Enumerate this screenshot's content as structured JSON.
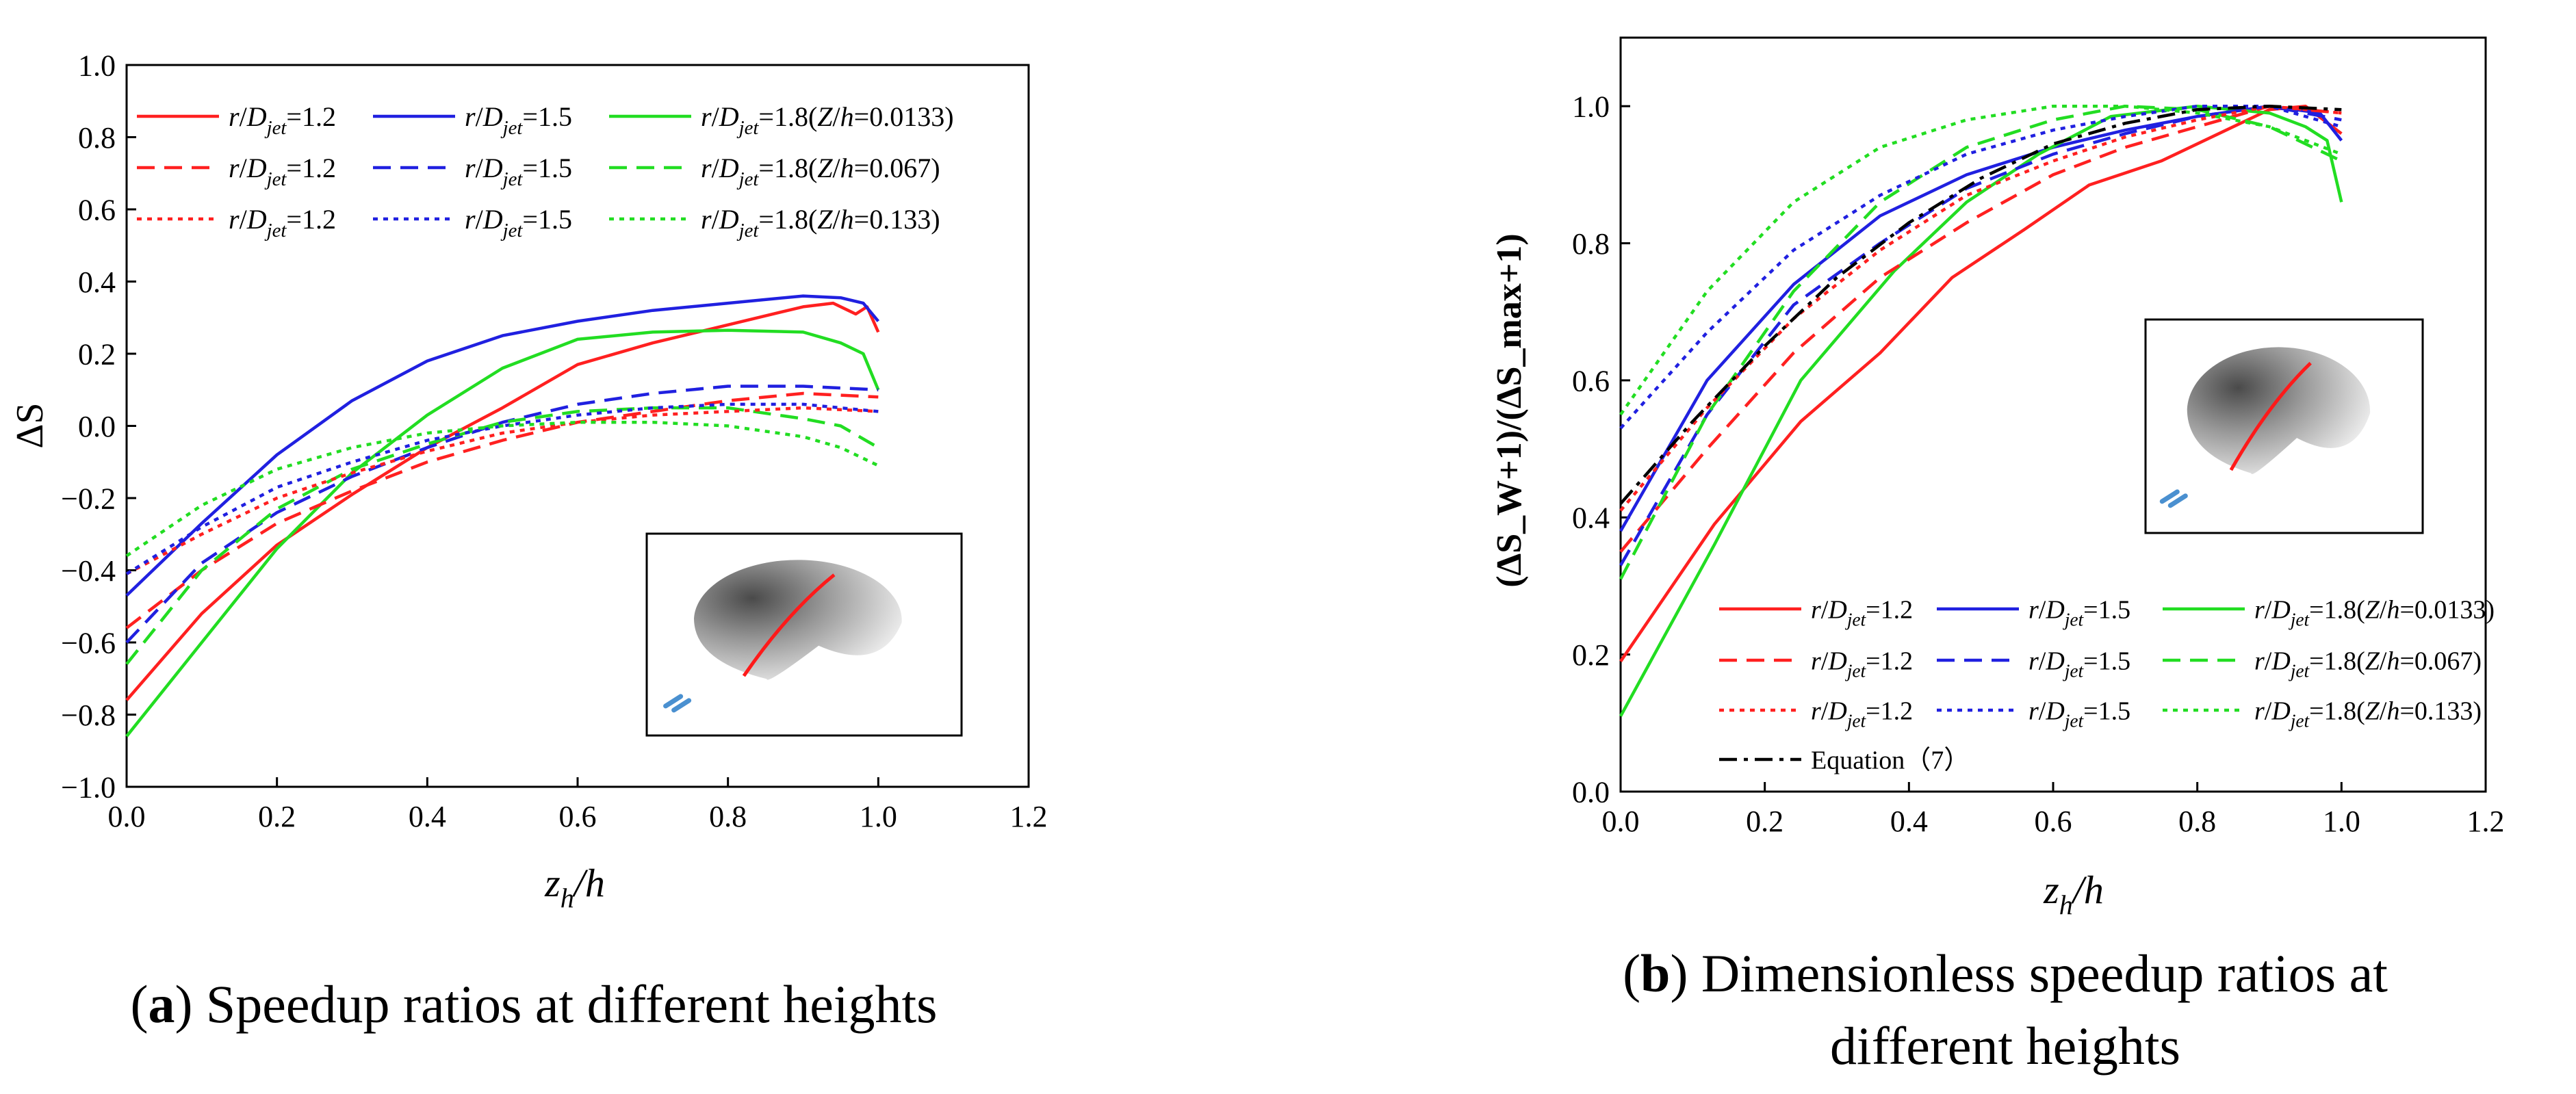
{
  "chart_data": [
    {
      "type": "line",
      "panel": "a",
      "xlabel": "z_h/h",
      "ylabel": "ΔS",
      "xlim": [
        0,
        1.2
      ],
      "ylim": [
        -1.0,
        1.0
      ],
      "xticks": [
        "0.0",
        "0.2",
        "0.4",
        "0.6",
        "0.8",
        "1.0",
        "1.2"
      ],
      "yticks": [
        "−1.0",
        "−0.8",
        "−0.6",
        "−0.4",
        "−0.2",
        "0.0",
        "0.2",
        "0.4",
        "0.6",
        "0.8",
        "1.0"
      ],
      "grid": false,
      "legend_position": "top",
      "series": [
        {
          "name": "r/Djet=1.2",
          "zh": "Z/h=0.0133",
          "color": "#ff2020",
          "dash": "solid",
          "points": [
            [
              0,
              -0.76
            ],
            [
              0.1,
              -0.52
            ],
            [
              0.2,
              -0.33
            ],
            [
              0.3,
              -0.19
            ],
            [
              0.4,
              -0.06
            ],
            [
              0.5,
              0.05
            ],
            [
              0.6,
              0.17
            ],
            [
              0.7,
              0.23
            ],
            [
              0.8,
              0.28
            ],
            [
              0.9,
              0.33
            ],
            [
              0.94,
              0.34
            ],
            [
              0.96,
              0.32
            ],
            [
              0.97,
              0.31
            ],
            [
              0.985,
              0.33
            ],
            [
              1.0,
              0.26
            ]
          ]
        },
        {
          "name": "r/Djet=1.5",
          "zh": "Z/h=0.0133",
          "color": "#2020e0",
          "dash": "solid",
          "points": [
            [
              0,
              -0.47
            ],
            [
              0.1,
              -0.27
            ],
            [
              0.2,
              -0.08
            ],
            [
              0.3,
              0.07
            ],
            [
              0.4,
              0.18
            ],
            [
              0.5,
              0.25
            ],
            [
              0.6,
              0.29
            ],
            [
              0.7,
              0.32
            ],
            [
              0.8,
              0.34
            ],
            [
              0.9,
              0.36
            ],
            [
              0.95,
              0.355
            ],
            [
              0.98,
              0.34
            ],
            [
              1.0,
              0.29
            ]
          ]
        },
        {
          "name": "r/Djet=1.8(Z/h=0.0133)",
          "zh": "Z/h=0.0133",
          "color": "#22dd22",
          "dash": "solid",
          "points": [
            [
              0,
              -0.86
            ],
            [
              0.1,
              -0.6
            ],
            [
              0.2,
              -0.34
            ],
            [
              0.3,
              -0.13
            ],
            [
              0.4,
              0.03
            ],
            [
              0.5,
              0.16
            ],
            [
              0.6,
              0.24
            ],
            [
              0.7,
              0.26
            ],
            [
              0.8,
              0.265
            ],
            [
              0.9,
              0.26
            ],
            [
              0.95,
              0.23
            ],
            [
              0.98,
              0.2
            ],
            [
              1.0,
              0.1
            ]
          ]
        },
        {
          "name": "r/Djet=1.2",
          "zh": "Z/h=0.067",
          "color": "#ff2020",
          "dash": "dashed",
          "points": [
            [
              0,
              -0.56
            ],
            [
              0.1,
              -0.4
            ],
            [
              0.2,
              -0.27
            ],
            [
              0.3,
              -0.18
            ],
            [
              0.4,
              -0.1
            ],
            [
              0.5,
              -0.04
            ],
            [
              0.6,
              0.01
            ],
            [
              0.7,
              0.04
            ],
            [
              0.8,
              0.07
            ],
            [
              0.9,
              0.09
            ],
            [
              1.0,
              0.08
            ]
          ]
        },
        {
          "name": "r/Djet=1.5",
          "zh": "Z/h=0.067",
          "color": "#2020e0",
          "dash": "dashed",
          "points": [
            [
              0,
              -0.6
            ],
            [
              0.1,
              -0.38
            ],
            [
              0.2,
              -0.24
            ],
            [
              0.3,
              -0.14
            ],
            [
              0.4,
              -0.06
            ],
            [
              0.5,
              0.01
            ],
            [
              0.6,
              0.06
            ],
            [
              0.7,
              0.09
            ],
            [
              0.8,
              0.11
            ],
            [
              0.9,
              0.11
            ],
            [
              1.0,
              0.1
            ]
          ]
        },
        {
          "name": "r/Djet=1.8(Z/h=0.067)",
          "zh": "Z/h=0.067",
          "color": "#22dd22",
          "dash": "dashed",
          "points": [
            [
              0,
              -0.66
            ],
            [
              0.1,
              -0.4
            ],
            [
              0.2,
              -0.23
            ],
            [
              0.3,
              -0.12
            ],
            [
              0.4,
              -0.05
            ],
            [
              0.5,
              0.01
            ],
            [
              0.6,
              0.04
            ],
            [
              0.7,
              0.05
            ],
            [
              0.8,
              0.05
            ],
            [
              0.9,
              0.02
            ],
            [
              0.95,
              0.0
            ],
            [
              1.0,
              -0.06
            ]
          ]
        },
        {
          "name": "r/Djet=1.2",
          "zh": "Z/h=0.133",
          "color": "#ff2020",
          "dash": "dotted",
          "points": [
            [
              0,
              -0.41
            ],
            [
              0.1,
              -0.3
            ],
            [
              0.2,
              -0.2
            ],
            [
              0.3,
              -0.13
            ],
            [
              0.4,
              -0.07
            ],
            [
              0.5,
              -0.02
            ],
            [
              0.6,
              0.01
            ],
            [
              0.7,
              0.03
            ],
            [
              0.8,
              0.04
            ],
            [
              0.9,
              0.05
            ],
            [
              1.0,
              0.04
            ]
          ]
        },
        {
          "name": "r/Djet=1.5",
          "zh": "Z/h=0.133",
          "color": "#2020e0",
          "dash": "dotted",
          "points": [
            [
              0,
              -0.41
            ],
            [
              0.1,
              -0.28
            ],
            [
              0.2,
              -0.17
            ],
            [
              0.3,
              -0.1
            ],
            [
              0.4,
              -0.04
            ],
            [
              0.5,
              0.0
            ],
            [
              0.6,
              0.03
            ],
            [
              0.7,
              0.05
            ],
            [
              0.8,
              0.06
            ],
            [
              0.9,
              0.06
            ],
            [
              1.0,
              0.04
            ]
          ]
        },
        {
          "name": "r/Djet=1.8(Z/h=0.133)",
          "zh": "Z/h=0.133",
          "color": "#22dd22",
          "dash": "dotted",
          "points": [
            [
              0,
              -0.36
            ],
            [
              0.1,
              -0.22
            ],
            [
              0.2,
              -0.12
            ],
            [
              0.3,
              -0.06
            ],
            [
              0.4,
              -0.02
            ],
            [
              0.5,
              0.0
            ],
            [
              0.6,
              0.01
            ],
            [
              0.7,
              0.01
            ],
            [
              0.8,
              0.0
            ],
            [
              0.9,
              -0.03
            ],
            [
              0.95,
              -0.06
            ],
            [
              1.0,
              -0.11
            ]
          ]
        }
      ]
    },
    {
      "type": "line",
      "panel": "b",
      "xlabel": "z_h/h",
      "ylabel": "(ΔS_W+1)/(ΔS_max+1)",
      "xlim": [
        0,
        1.2
      ],
      "ylim": [
        0,
        1.1
      ],
      "xticks": [
        "0.0",
        "0.2",
        "0.4",
        "0.6",
        "0.8",
        "1.0",
        "1.2"
      ],
      "yticks": [
        "0.0",
        "0.2",
        "0.4",
        "0.6",
        "0.8",
        "1.0"
      ],
      "grid": false,
      "legend_position": "bottom",
      "series": [
        {
          "name": "r/Djet=1.2",
          "zh": "Z/h=0.0133",
          "color": "#ff2020",
          "dash": "solid",
          "points": [
            [
              0,
              0.19
            ],
            [
              0.13,
              0.39
            ],
            [
              0.25,
              0.54
            ],
            [
              0.36,
              0.64
            ],
            [
              0.46,
              0.75
            ],
            [
              0.56,
              0.82
            ],
            [
              0.65,
              0.885
            ],
            [
              0.75,
              0.92
            ],
            [
              0.85,
              0.97
            ],
            [
              0.9,
              0.995
            ],
            [
              0.95,
              1.0
            ],
            [
              1.0,
              0.96
            ]
          ]
        },
        {
          "name": "r/Djet=1.5",
          "zh": "Z/h=0.0133",
          "color": "#2020e0",
          "dash": "solid",
          "points": [
            [
              0,
              0.38
            ],
            [
              0.12,
              0.6
            ],
            [
              0.24,
              0.74
            ],
            [
              0.36,
              0.84
            ],
            [
              0.48,
              0.9
            ],
            [
              0.6,
              0.94
            ],
            [
              0.7,
              0.965
            ],
            [
              0.8,
              0.985
            ],
            [
              0.9,
              1.0
            ],
            [
              0.97,
              0.99
            ],
            [
              1.0,
              0.95
            ]
          ]
        },
        {
          "name": "r/Djet=1.8(Z/h=0.0133)",
          "zh": "Z/h=0.0133",
          "color": "#22dd22",
          "dash": "solid",
          "points": [
            [
              0,
              0.11
            ],
            [
              0.13,
              0.36
            ],
            [
              0.25,
              0.6
            ],
            [
              0.38,
              0.76
            ],
            [
              0.48,
              0.86
            ],
            [
              0.58,
              0.93
            ],
            [
              0.68,
              0.985
            ],
            [
              0.8,
              1.0
            ],
            [
              0.9,
              0.99
            ],
            [
              0.95,
              0.97
            ],
            [
              0.98,
              0.95
            ],
            [
              1.0,
              0.86
            ]
          ]
        },
        {
          "name": "r/Djet=1.2",
          "zh": "Z/h=0.067",
          "color": "#ff2020",
          "dash": "dashed",
          "points": [
            [
              0,
              0.35
            ],
            [
              0.12,
              0.5
            ],
            [
              0.24,
              0.64
            ],
            [
              0.36,
              0.75
            ],
            [
              0.48,
              0.83
            ],
            [
              0.6,
              0.9
            ],
            [
              0.7,
              0.94
            ],
            [
              0.8,
              0.97
            ],
            [
              0.9,
              1.0
            ],
            [
              1.0,
              0.99
            ]
          ]
        },
        {
          "name": "r/Djet=1.5",
          "zh": "Z/h=0.067",
          "color": "#2020e0",
          "dash": "dashed",
          "points": [
            [
              0,
              0.33
            ],
            [
              0.12,
              0.55
            ],
            [
              0.24,
              0.71
            ],
            [
              0.36,
              0.8
            ],
            [
              0.48,
              0.88
            ],
            [
              0.6,
              0.93
            ],
            [
              0.7,
              0.96
            ],
            [
              0.8,
              0.985
            ],
            [
              0.9,
              1.0
            ],
            [
              1.0,
              0.98
            ]
          ]
        },
        {
          "name": "r/Djet=1.8(Z/h=0.067)",
          "zh": "Z/h=0.067",
          "color": "#22dd22",
          "dash": "dashed",
          "points": [
            [
              0,
              0.31
            ],
            [
              0.12,
              0.55
            ],
            [
              0.24,
              0.73
            ],
            [
              0.36,
              0.86
            ],
            [
              0.48,
              0.94
            ],
            [
              0.6,
              0.98
            ],
            [
              0.7,
              1.0
            ],
            [
              0.8,
              0.995
            ],
            [
              0.9,
              0.97
            ],
            [
              1.0,
              0.92
            ]
          ]
        },
        {
          "name": "r/Djet=1.2",
          "zh": "Z/h=0.133",
          "color": "#ff2020",
          "dash": "dotted",
          "points": [
            [
              0,
              0.41
            ],
            [
              0.12,
              0.56
            ],
            [
              0.24,
              0.69
            ],
            [
              0.36,
              0.79
            ],
            [
              0.48,
              0.87
            ],
            [
              0.6,
              0.92
            ],
            [
              0.7,
              0.955
            ],
            [
              0.8,
              0.98
            ],
            [
              0.9,
              1.0
            ],
            [
              1.0,
              0.99
            ]
          ]
        },
        {
          "name": "r/Djet=1.5",
          "zh": "Z/h=0.133",
          "color": "#2020e0",
          "dash": "dotted",
          "points": [
            [
              0,
              0.53
            ],
            [
              0.12,
              0.67
            ],
            [
              0.24,
              0.79
            ],
            [
              0.36,
              0.87
            ],
            [
              0.48,
              0.93
            ],
            [
              0.6,
              0.965
            ],
            [
              0.7,
              0.985
            ],
            [
              0.8,
              1.0
            ],
            [
              0.9,
              1.0
            ],
            [
              1.0,
              0.97
            ]
          ]
        },
        {
          "name": "r/Djet=1.8(Z/h=0.133)",
          "zh": "Z/h=0.133",
          "color": "#22dd22",
          "dash": "dotted",
          "points": [
            [
              0,
              0.55
            ],
            [
              0.12,
              0.73
            ],
            [
              0.24,
              0.86
            ],
            [
              0.36,
              0.94
            ],
            [
              0.48,
              0.98
            ],
            [
              0.6,
              1.0
            ],
            [
              0.7,
              1.0
            ],
            [
              0.8,
              0.99
            ],
            [
              0.9,
              0.97
            ],
            [
              1.0,
              0.93
            ]
          ]
        },
        {
          "name": "Equation（7）",
          "zh": "",
          "color": "#000000",
          "dash": "dashdot",
          "points": [
            [
              0,
              0.42
            ],
            [
              0.1,
              0.54
            ],
            [
              0.2,
              0.65
            ],
            [
              0.3,
              0.75
            ],
            [
              0.4,
              0.83
            ],
            [
              0.5,
              0.895
            ],
            [
              0.6,
              0.945
            ],
            [
              0.7,
              0.975
            ],
            [
              0.8,
              0.995
            ],
            [
              0.9,
              1.0
            ],
            [
              1.0,
              0.995
            ]
          ]
        }
      ]
    }
  ],
  "captions": {
    "a": {
      "label": "a",
      "text": " Speedup ratios at different heights"
    },
    "b": {
      "label": "b",
      "line1": " Dimensionless speedup ratios at",
      "line2": "different heights"
    }
  }
}
